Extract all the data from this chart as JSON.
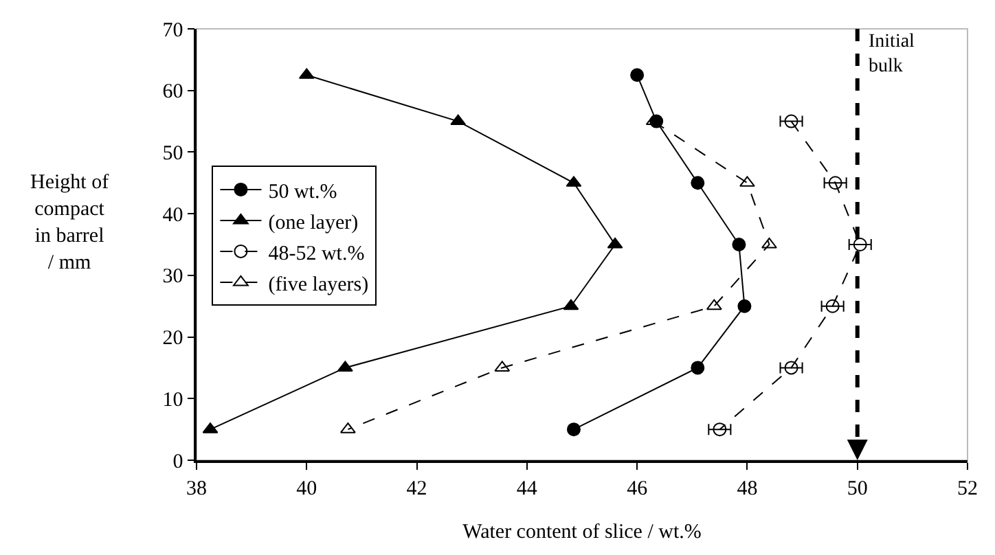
{
  "chart_data": {
    "type": "line",
    "xlabel": "Water content of slice / wt.%",
    "ylabel": "Height of\ncompact\nin barrel\n/ mm",
    "xlim": [
      38,
      52
    ],
    "xticks": [
      38,
      40,
      42,
      44,
      46,
      48,
      50,
      52
    ],
    "ylim": [
      0,
      70
    ],
    "yticks": [
      0,
      10,
      20,
      30,
      40,
      50,
      60,
      70
    ],
    "grid": false,
    "legend": "left",
    "series": [
      {
        "name": "50 wt.%",
        "color": "#000000",
        "marker": "circle",
        "line_style": "solid",
        "x": [
          46.0,
          46.35,
          47.1,
          47.85,
          47.95,
          47.1,
          44.85
        ],
        "values": [
          62.5,
          55,
          45,
          35,
          25,
          15,
          5
        ]
      },
      {
        "name": "(one layer)",
        "color": "#000000",
        "marker": "triangle",
        "line_style": "solid",
        "x": [
          40.0,
          42.75,
          44.85,
          45.6,
          44.8,
          40.7,
          38.25
        ],
        "values": [
          62.5,
          55,
          45,
          35,
          25,
          15,
          5
        ]
      },
      {
        "name": "48-52 wt.%",
        "color": "#000000",
        "marker": "circle-open",
        "line_style": "dashed",
        "x": [
          48.8,
          49.6,
          50.05,
          49.55,
          48.8,
          47.5
        ],
        "values": [
          55,
          45,
          35,
          25,
          15,
          5
        ],
        "xerrors": [
          0.2,
          0.2,
          0.2,
          0.2,
          0.2,
          0.2
        ]
      },
      {
        "name": "(five layers)",
        "color": "#000000",
        "marker": "triangle-open",
        "line_style": "dashed",
        "x": [
          46.3,
          48.0,
          48.4,
          47.4,
          43.55,
          40.75
        ],
        "values": [
          55,
          45,
          35,
          25,
          15,
          5
        ]
      }
    ],
    "ref_lines": [
      {
        "axis": "x",
        "value": 50,
        "label": "Initial\nbulk",
        "color": "#000000",
        "line_style": "dashed"
      }
    ]
  }
}
